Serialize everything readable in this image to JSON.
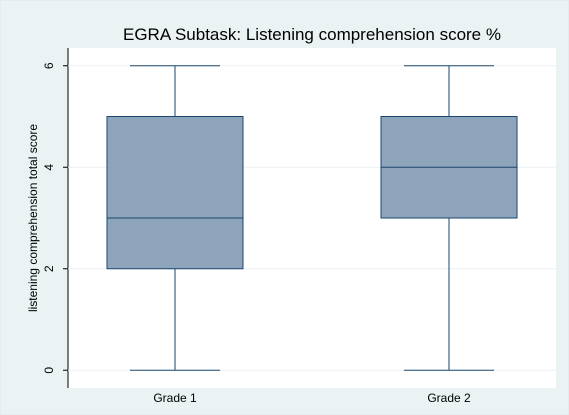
{
  "chart_data": {
    "type": "box",
    "title": "EGRA Subtask: Listening comprehension score %",
    "y_label": "listening comprehension total score",
    "categories": [
      "Grade 1",
      "Grade 2"
    ],
    "boxes": [
      {
        "min": 0,
        "q1": 2,
        "median": 3,
        "q3": 5,
        "max": 6
      },
      {
        "min": 0,
        "q1": 3,
        "median": 4,
        "q3": 5,
        "max": 6
      }
    ],
    "color": "#8ea4ba",
    "ylim": [
      -0.35,
      6.35
    ],
    "yticks": [
      0,
      2,
      4,
      6
    ],
    "grid": true
  }
}
